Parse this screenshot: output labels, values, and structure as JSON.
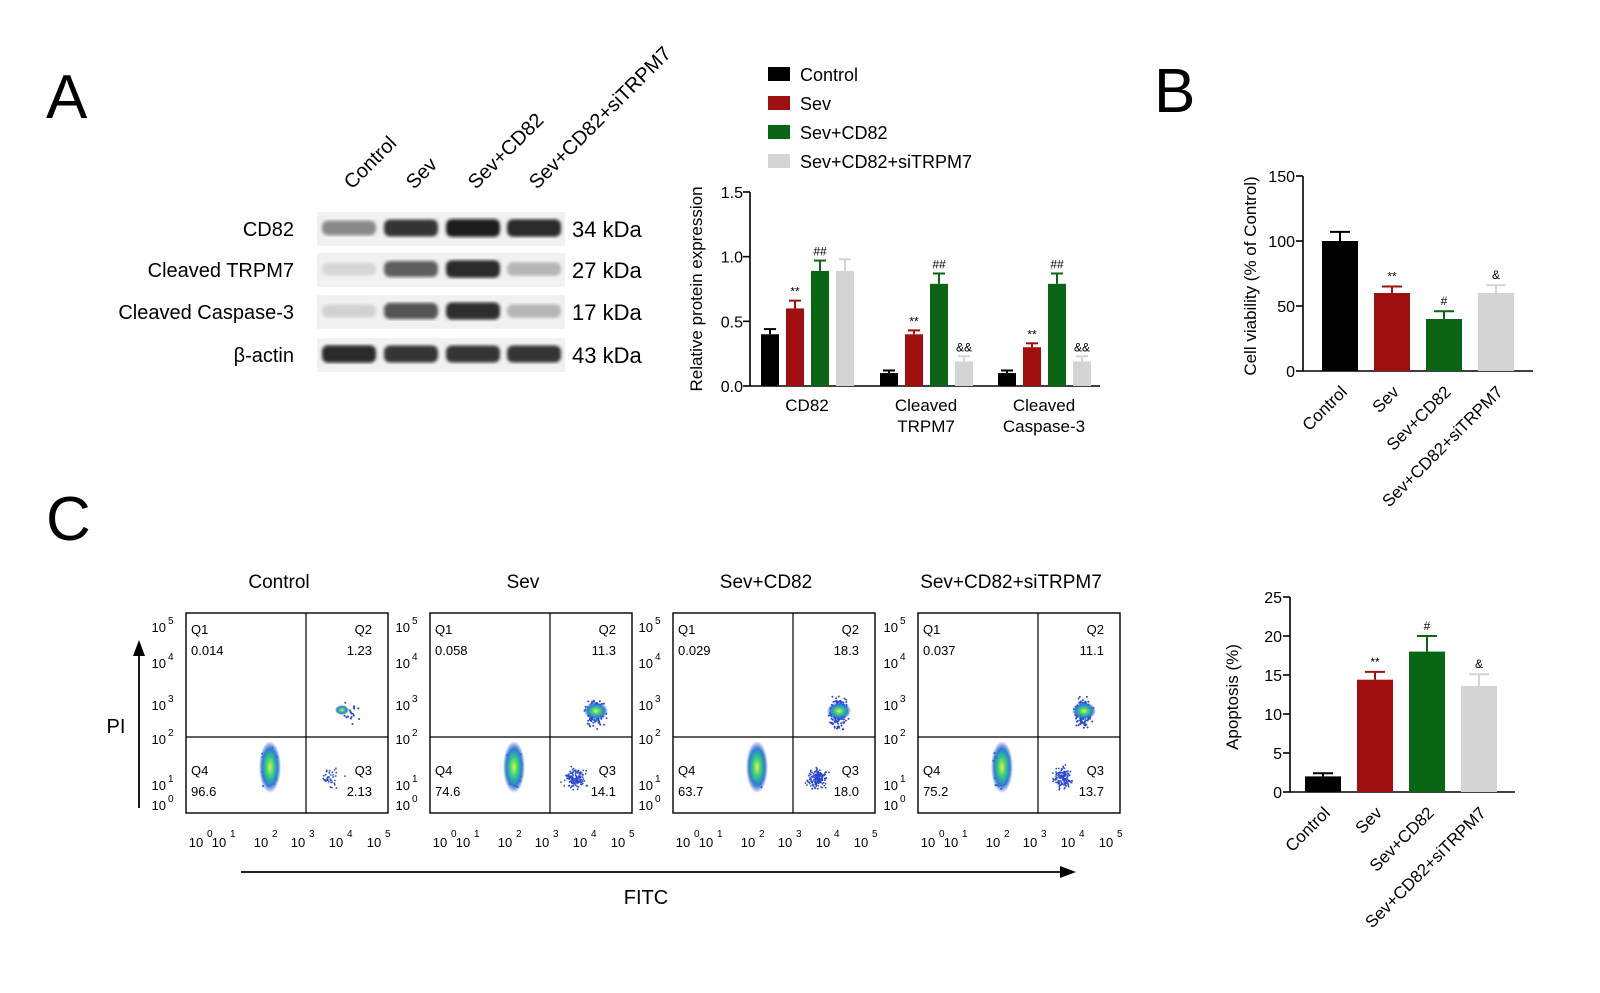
{
  "panels": {
    "a": "A",
    "b": "B",
    "c": "C"
  },
  "colors": {
    "Control": "#000000",
    "Sev": "#a01010",
    "Sev+CD82": "#0a6614",
    "Sev+CD82+siTRPM7": "#d4d4d4"
  },
  "western_blot": {
    "lanes": [
      "Control",
      "Sev",
      "Sev+CD82",
      "Sev+CD82+siTRPM7"
    ],
    "rows": [
      {
        "protein": "CD82",
        "size": "34 kDa",
        "intensity": [
          0.45,
          0.85,
          0.95,
          0.9
        ]
      },
      {
        "protein": "Cleaved TRPM7",
        "size": "27 kDa",
        "intensity": [
          0.1,
          0.65,
          0.9,
          0.25
        ]
      },
      {
        "protein": "Cleaved Caspase-3",
        "size": "17 kDa",
        "intensity": [
          0.12,
          0.7,
          0.88,
          0.25
        ]
      },
      {
        "protein": "β-actin",
        "size": "43 kDa",
        "intensity": [
          0.9,
          0.85,
          0.85,
          0.85
        ]
      }
    ]
  },
  "chart_data": [
    {
      "id": "protein",
      "type": "bar",
      "ylabel": "Relative protein expression",
      "ylim": [
        0,
        1.5
      ],
      "yticks": [
        "0.0",
        "0.5",
        "1.0",
        "1.5"
      ],
      "categories": [
        [
          "CD82"
        ],
        [
          "Cleaved",
          "TRPM7"
        ],
        [
          "Cleaved",
          "Caspase-3"
        ]
      ],
      "legend": "top",
      "series": [
        {
          "name": "Control",
          "values": [
            0.4,
            0.1,
            0.1
          ],
          "errors": [
            0.04,
            0.02,
            0.02
          ],
          "sig": [
            "",
            "",
            ""
          ]
        },
        {
          "name": "Sev",
          "values": [
            0.6,
            0.4,
            0.3
          ],
          "errors": [
            0.06,
            0.03,
            0.03
          ],
          "sig": [
            "**",
            "**",
            "**"
          ]
        },
        {
          "name": "Sev+CD82",
          "values": [
            0.89,
            0.79,
            0.79
          ],
          "errors": [
            0.08,
            0.08,
            0.08
          ],
          "sig": [
            "##",
            "##",
            "##"
          ]
        },
        {
          "name": "Sev+CD82+siTRPM7",
          "values": [
            0.89,
            0.19,
            0.19
          ],
          "errors": [
            0.09,
            0.04,
            0.04
          ],
          "sig": [
            "",
            "&&",
            "&&"
          ]
        }
      ]
    },
    {
      "id": "viability",
      "type": "bar",
      "ylabel": "Cell viability (% of Control)",
      "ylim": [
        0,
        150
      ],
      "yticks": [
        "0",
        "50",
        "100",
        "150"
      ],
      "categories": [
        "Control",
        "Sev",
        "Sev+CD82",
        "Sev+CD82+siTRPM7"
      ],
      "values": [
        100,
        60,
        40,
        60
      ],
      "errors": [
        7,
        5,
        6,
        6
      ],
      "sig": [
        "",
        "**",
        "#",
        "&"
      ]
    },
    {
      "id": "apoptosis",
      "type": "bar",
      "ylabel": "Apoptosis (%)",
      "ylim": [
        0,
        25
      ],
      "yticks": [
        "0",
        "5",
        "10",
        "15",
        "20",
        "25"
      ],
      "categories": [
        "Control",
        "Sev",
        "Sev+CD82",
        "Sev+CD82+siTRPM7"
      ],
      "values": [
        2.0,
        14.4,
        18.0,
        13.6
      ],
      "errors": [
        0.4,
        1.0,
        2.0,
        1.5
      ],
      "sig": [
        "",
        "**",
        "#",
        "&"
      ]
    }
  ],
  "flow": {
    "xlabel": "FITC",
    "ylabel": "PI",
    "axis_base": "10",
    "axis_exps": [
      "0",
      "1",
      "2",
      "3",
      "4",
      "5"
    ],
    "plots": [
      {
        "title": "Control",
        "q1": "0.014",
        "q2": "1.23",
        "q3": "2.13",
        "q4": "96.6"
      },
      {
        "title": "Sev",
        "q1": "0.058",
        "q2": "11.3",
        "q3": "14.1",
        "q4": "74.6"
      },
      {
        "title": "Sev+CD82",
        "q1": "0.029",
        "q2": "18.3",
        "q3": "18.0",
        "q4": "63.7"
      },
      {
        "title": "Sev+CD82+siTRPM7",
        "q1": "0.037",
        "q2": "11.1",
        "q3": "13.7",
        "q4": "75.2"
      }
    ],
    "quadrant_names": [
      "Q1",
      "Q2",
      "Q3",
      "Q4"
    ]
  }
}
